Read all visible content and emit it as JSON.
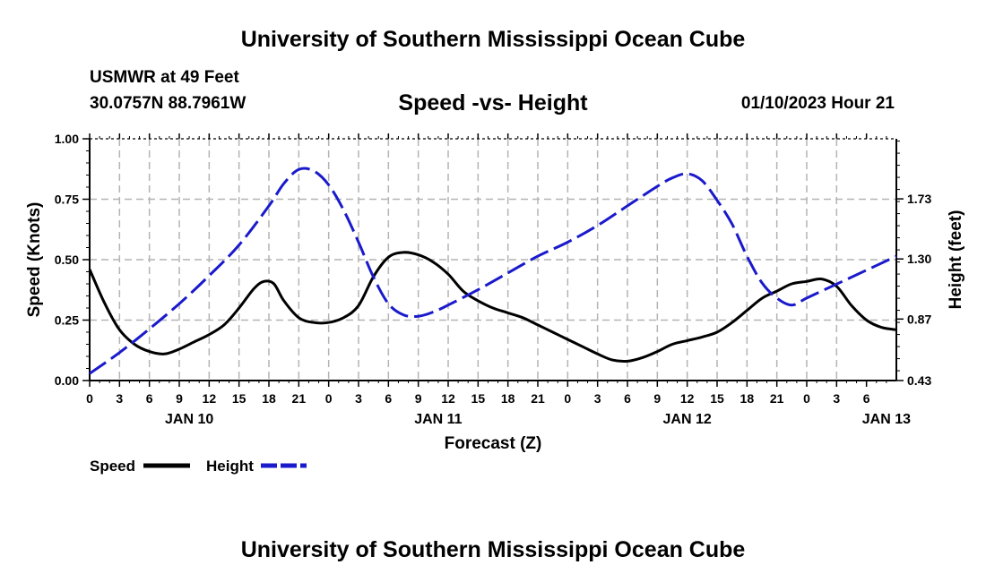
{
  "header": {
    "title": "University of Southern Mississippi Ocean Cube",
    "station": "USMWR at 49 Feet",
    "coordinates": "30.0757N  88.7961W",
    "datetime": "01/10/2023 Hour 21"
  },
  "footer": {
    "title": "University of Southern Mississippi Ocean Cube"
  },
  "chart_data": {
    "type": "line",
    "title": "Speed -vs- Height",
    "xlabel": "Forecast (Z)",
    "ylabel_left": "Speed (Knots)",
    "ylabel_right": "Height (feet)",
    "ylim_left": [
      0,
      1
    ],
    "ylim_right": [
      0.43,
      2.16
    ],
    "xlim_hours": [
      0,
      81
    ],
    "x_tick_labels": [
      "0",
      "3",
      "6",
      "9",
      "12",
      "15",
      "18",
      "21",
      "0",
      "3",
      "6",
      "9",
      "12",
      "15",
      "18",
      "21",
      "0",
      "3",
      "6",
      "9",
      "12",
      "15",
      "18",
      "21",
      "0",
      "3",
      "6"
    ],
    "day_labels": [
      {
        "label": "JAN 10",
        "hour": 10
      },
      {
        "label": "JAN 11",
        "hour": 35
      },
      {
        "label": "JAN 12",
        "hour": 60
      },
      {
        "label": "JAN 13",
        "hour": 80
      }
    ],
    "y_left_ticks": [
      "0.00",
      "0.25",
      "0.50",
      "0.75",
      "1.00"
    ],
    "y_right_ticks": [
      {
        "label": "0.43",
        "value": 0.43
      },
      {
        "label": "0.87",
        "value": 0.87
      },
      {
        "label": "1.30",
        "value": 1.3
      },
      {
        "label": "1.73",
        "value": 1.73
      }
    ],
    "grid": true,
    "legend_position": "bottom-left",
    "legend": [
      {
        "name": "Speed",
        "color": "#000000",
        "style": "solid"
      },
      {
        "name": "Height",
        "color": "#1a1acc",
        "style": "dashed"
      }
    ],
    "series": [
      {
        "name": "Speed",
        "axis": "left",
        "color": "#000000",
        "x": [
          0,
          1.5,
          3,
          4.5,
          6,
          7.5,
          9,
          10.5,
          12,
          13.5,
          15,
          16.5,
          17.5,
          18.5,
          19.5,
          21,
          22.5,
          24,
          25.5,
          27,
          28.5,
          30,
          31.5,
          33,
          34.5,
          36,
          37.5,
          39,
          40.5,
          42,
          43.5,
          45,
          46.5,
          48,
          49.5,
          51,
          52.5,
          54,
          55.5,
          57,
          58.5,
          60,
          61.5,
          63,
          64.5,
          66,
          67.5,
          69,
          70.5,
          72,
          73.5,
          75,
          76.5,
          78,
          79.5,
          81
        ],
        "values": [
          0.46,
          0.32,
          0.21,
          0.15,
          0.12,
          0.11,
          0.13,
          0.16,
          0.19,
          0.23,
          0.3,
          0.38,
          0.41,
          0.4,
          0.33,
          0.26,
          0.24,
          0.24,
          0.26,
          0.31,
          0.43,
          0.51,
          0.53,
          0.52,
          0.49,
          0.44,
          0.37,
          0.33,
          0.3,
          0.28,
          0.26,
          0.23,
          0.2,
          0.17,
          0.14,
          0.11,
          0.085,
          0.08,
          0.095,
          0.12,
          0.15,
          0.165,
          0.18,
          0.2,
          0.24,
          0.29,
          0.34,
          0.37,
          0.4,
          0.41,
          0.42,
          0.39,
          0.31,
          0.25,
          0.22,
          0.21
        ]
      },
      {
        "name": "Height",
        "axis": "right",
        "color": "#1a1acc",
        "x": [
          0,
          3,
          6,
          9,
          12,
          15,
          18,
          19.5,
          21,
          22.5,
          24,
          25.5,
          27,
          28.5,
          30,
          31.5,
          33,
          34.5,
          36,
          39,
          42,
          45,
          48,
          51,
          54,
          57,
          58.5,
          60,
          61.5,
          63,
          64.5,
          66,
          67.5,
          69,
          70.5,
          72,
          75,
          78,
          81
        ],
        "values": [
          0.48,
          0.63,
          0.8,
          0.98,
          1.18,
          1.4,
          1.68,
          1.84,
          1.94,
          1.93,
          1.83,
          1.65,
          1.42,
          1.17,
          0.98,
          0.9,
          0.89,
          0.92,
          0.97,
          1.08,
          1.2,
          1.32,
          1.42,
          1.54,
          1.68,
          1.82,
          1.88,
          1.91,
          1.86,
          1.72,
          1.55,
          1.32,
          1.13,
          1.02,
          0.97,
          1.02,
          1.12,
          1.22,
          1.32
        ]
      }
    ]
  }
}
